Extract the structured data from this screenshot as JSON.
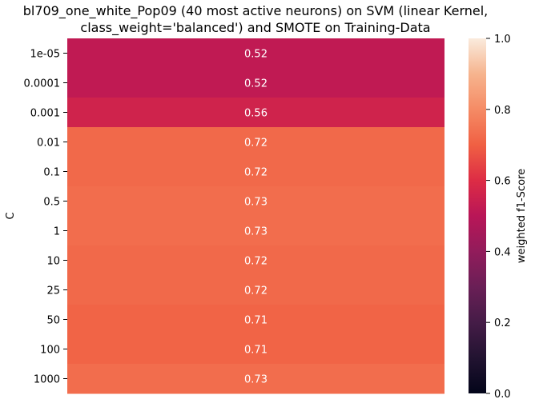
{
  "chart_data": {
    "type": "heatmap",
    "title_lines": [
      "bl709_one_white_Pop09 (40 most active neurons) on SVM (linear Kernel,",
      "class_weight='balanced') and SMOTE on Training-Data"
    ],
    "ylabel": "C",
    "xlabel": "",
    "row_labels": [
      "1e-05",
      "0.0001",
      "0.001",
      "0.01",
      "0.1",
      "0.5",
      "1",
      "10",
      "25",
      "50",
      "100",
      "1000"
    ],
    "values": [
      0.52,
      0.52,
      0.56,
      0.72,
      0.72,
      0.73,
      0.73,
      0.72,
      0.72,
      0.71,
      0.71,
      0.73
    ],
    "value_labels": [
      "0.52",
      "0.52",
      "0.56",
      "0.72",
      "0.72",
      "0.73",
      "0.73",
      "0.72",
      "0.72",
      "0.71",
      "0.71",
      "0.73"
    ],
    "colorbar": {
      "label": "weighted f1-Score",
      "range": [
        0.0,
        1.0
      ],
      "ticks": [
        "0.0",
        "0.2",
        "0.4",
        "0.6",
        "0.8",
        "1.0"
      ],
      "colormap": "rocket"
    }
  }
}
